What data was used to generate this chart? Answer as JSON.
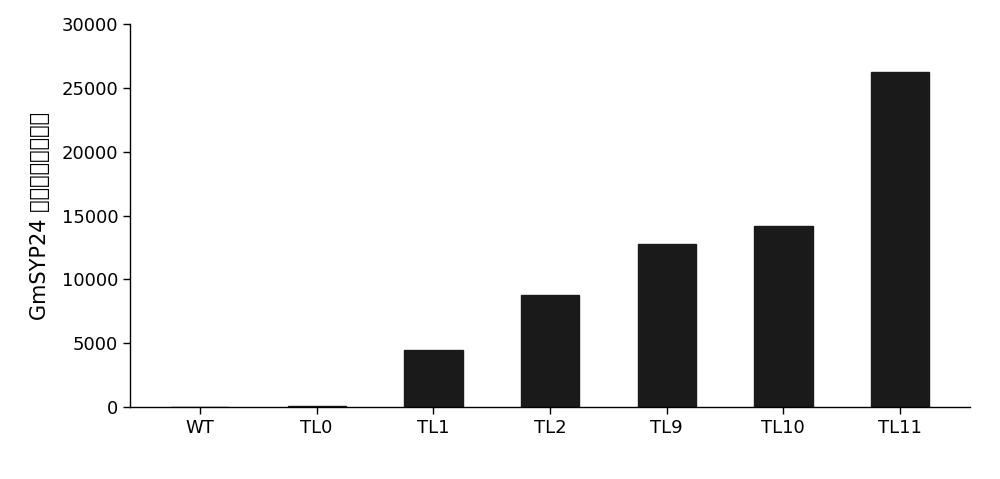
{
  "categories": [
    "WT",
    "TL0",
    "TL1",
    "TL2",
    "TL9",
    "TL10",
    "TL11"
  ],
  "values": [
    50,
    80,
    4500,
    8800,
    12800,
    14200,
    26200
  ],
  "bar_color": "#1a1a1a",
  "ylabel_latin": "GmSYP24",
  "ylabel_chinese": "基因的相对表达量",
  "ylim": [
    0,
    30000
  ],
  "yticks": [
    0,
    5000,
    10000,
    15000,
    20000,
    25000,
    30000
  ],
  "bar_width": 0.5,
  "background_color": "#ffffff",
  "tick_fontsize": 13,
  "ylabel_fontsize": 15,
  "figsize": [
    10.0,
    4.79
  ],
  "dpi": 100
}
